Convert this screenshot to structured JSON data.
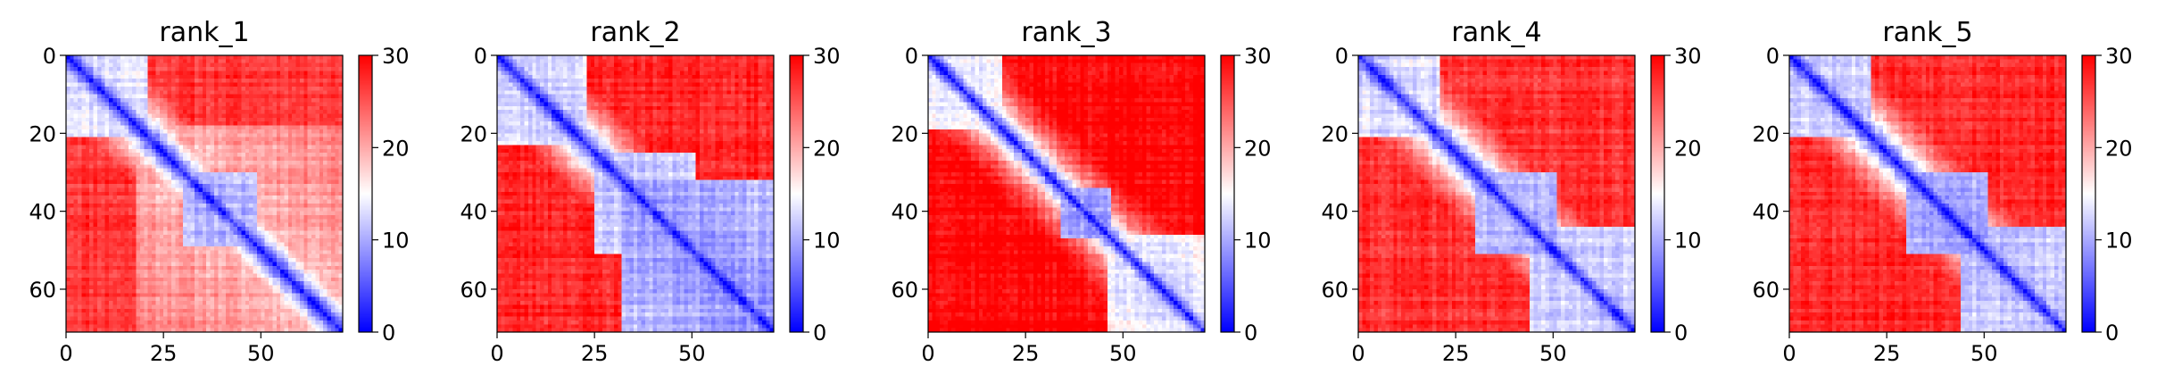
{
  "chart_data": [
    {
      "type": "heatmap",
      "title": "rank_1",
      "x_ticks": [
        "0",
        "25",
        "50"
      ],
      "y_ticks": [
        "0",
        "20",
        "40",
        "60"
      ],
      "x_range": [
        0,
        71
      ],
      "y_range": [
        0,
        71
      ],
      "colorbar": {
        "min": 0,
        "max": 30,
        "ticks": [
          "0",
          "10",
          "20",
          "30"
        ],
        "colormap": "bwr",
        "low_color": "#0000ff",
        "mid_color": "#ffffff",
        "high_color": "#ff0000"
      },
      "pattern": {
        "size": 71,
        "base": 22,
        "diag_width": 6.5,
        "spread": 0.55,
        "domains": [
          {
            "start": 0,
            "end": 20,
            "level": 13
          },
          {
            "start": 18,
            "end": 71,
            "level": 19
          },
          {
            "start": 30,
            "end": 48,
            "level": 10
          }
        ],
        "seed": 11
      }
    },
    {
      "type": "heatmap",
      "title": "rank_2",
      "x_ticks": [
        "0",
        "25",
        "50"
      ],
      "y_ticks": [
        "0",
        "20",
        "40",
        "60"
      ],
      "x_range": [
        0,
        71
      ],
      "y_range": [
        0,
        71
      ],
      "colorbar": {
        "min": 0,
        "max": 30,
        "ticks": [
          "0",
          "10",
          "20",
          "30"
        ],
        "colormap": "bwr",
        "low_color": "#0000ff",
        "mid_color": "#ffffff",
        "high_color": "#ff0000"
      },
      "pattern": {
        "size": 71,
        "base": 23,
        "diag_width": 7.5,
        "spread": 0.6,
        "domains": [
          {
            "start": 0,
            "end": 22,
            "level": 12
          },
          {
            "start": 32,
            "end": 71,
            "level": 9
          },
          {
            "start": 25,
            "end": 50,
            "level": 11
          }
        ],
        "seed": 23
      }
    },
    {
      "type": "heatmap",
      "title": "rank_3",
      "x_ticks": [
        "0",
        "25",
        "50"
      ],
      "y_ticks": [
        "0",
        "20",
        "40",
        "60"
      ],
      "x_range": [
        0,
        71
      ],
      "y_range": [
        0,
        71
      ],
      "colorbar": {
        "min": 0,
        "max": 30,
        "ticks": [
          "0",
          "10",
          "20",
          "30"
        ],
        "colormap": "bwr",
        "low_color": "#0000ff",
        "mid_color": "#ffffff",
        "high_color": "#ff0000"
      },
      "pattern": {
        "size": 71,
        "base": 25,
        "diag_width": 5.5,
        "spread": 0.45,
        "domains": [
          {
            "start": 0,
            "end": 18,
            "level": 14
          },
          {
            "start": 34,
            "end": 46,
            "level": 9
          },
          {
            "start": 46,
            "end": 71,
            "level": 13
          }
        ],
        "seed": 37
      }
    },
    {
      "type": "heatmap",
      "title": "rank_4",
      "x_ticks": [
        "0",
        "25",
        "50"
      ],
      "y_ticks": [
        "0",
        "20",
        "40",
        "60"
      ],
      "x_range": [
        0,
        71
      ],
      "y_range": [
        0,
        71
      ],
      "colorbar": {
        "min": 0,
        "max": 30,
        "ticks": [
          "0",
          "10",
          "20",
          "30"
        ],
        "colormap": "bwr",
        "low_color": "#0000ff",
        "mid_color": "#ffffff",
        "high_color": "#ff0000"
      },
      "pattern": {
        "size": 71,
        "base": 22,
        "diag_width": 6.5,
        "spread": 0.5,
        "domains": [
          {
            "start": 0,
            "end": 20,
            "level": 12
          },
          {
            "start": 30,
            "end": 50,
            "level": 10
          },
          {
            "start": 44,
            "end": 71,
            "level": 11
          }
        ],
        "seed": 41
      }
    },
    {
      "type": "heatmap",
      "title": "rank_5",
      "x_ticks": [
        "0",
        "25",
        "50"
      ],
      "y_ticks": [
        "0",
        "20",
        "40",
        "60"
      ],
      "x_range": [
        0,
        71
      ],
      "y_range": [
        0,
        71
      ],
      "colorbar": {
        "min": 0,
        "max": 30,
        "ticks": [
          "0",
          "10",
          "20",
          "30"
        ],
        "colormap": "bwr",
        "low_color": "#0000ff",
        "mid_color": "#ffffff",
        "high_color": "#ff0000"
      },
      "pattern": {
        "size": 71,
        "base": 23,
        "diag_width": 6.5,
        "spread": 0.5,
        "domains": [
          {
            "start": 0,
            "end": 20,
            "level": 12
          },
          {
            "start": 30,
            "end": 50,
            "level": 10
          },
          {
            "start": 44,
            "end": 71,
            "level": 11
          }
        ],
        "seed": 53
      }
    }
  ]
}
